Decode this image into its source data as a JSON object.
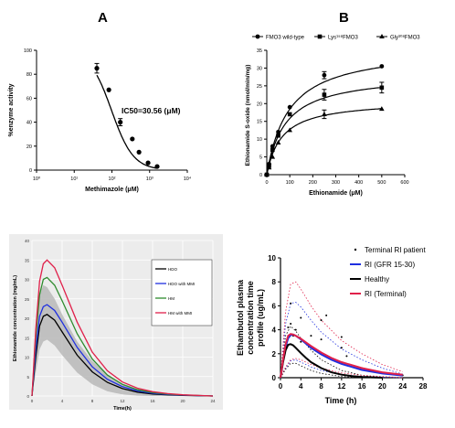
{
  "panels": {
    "A": {
      "letter": "A"
    },
    "B": {
      "letter": "B"
    }
  },
  "chart_data": [
    {
      "id": "A",
      "type": "scatter",
      "xlabel": "Methimazole (μM)",
      "ylabel": "%enzyme activity",
      "xscale": "log",
      "xlim": [
        0.1,
        10000
      ],
      "ylim": [
        0,
        100
      ],
      "xticklabels": [
        "10⁰",
        "10¹",
        "10²",
        "10³",
        "10⁴"
      ],
      "yticks": [
        0,
        20,
        40,
        60,
        80,
        100
      ],
      "annotation": "IC50=30.56 (μM)",
      "points": {
        "x": [
          10,
          25,
          60,
          150,
          250,
          500,
          1000
        ],
        "y": [
          85,
          67,
          40,
          26,
          15,
          6,
          3
        ],
        "err": [
          4,
          0,
          3,
          0,
          0,
          0,
          0
        ]
      },
      "fit": {
        "model": "sigmoid",
        "top": 100,
        "bottom": 0,
        "ic50": 30.56,
        "hill": 1.2
      }
    },
    {
      "id": "B",
      "type": "scatter",
      "xlabel": "Ethionamide (μM)",
      "ylabel": "Ethionamide S-oxide (nmol/min/mg)",
      "xlim": [
        0,
        600
      ],
      "ylim": [
        0,
        35
      ],
      "xticks": [
        0,
        100,
        200,
        300,
        400,
        500,
        600
      ],
      "yticks": [
        0,
        5,
        10,
        15,
        20,
        25,
        30,
        35
      ],
      "legend_position": "top",
      "series": [
        {
          "name": "FMO3 wild-type",
          "marker": "circle",
          "x": [
            0,
            10,
            25,
            50,
            100,
            250,
            500
          ],
          "y": [
            0,
            3,
            8,
            12,
            19,
            28,
            30.5
          ],
          "err": [
            0,
            0,
            0,
            0,
            0,
            1,
            0
          ],
          "vmax": 36,
          "km": 95
        },
        {
          "name": "Lys¹⁵⁸FMO3",
          "marker": "square",
          "x": [
            0,
            10,
            25,
            50,
            100,
            250,
            500
          ],
          "y": [
            0,
            2.5,
            7,
            11,
            17,
            22.5,
            24.5
          ],
          "err": [
            0,
            0,
            0,
            0,
            0,
            1.5,
            1.5
          ],
          "vmax": 28.5,
          "km": 80
        },
        {
          "name": "Gly³⁰⁸FMO3",
          "marker": "triangle",
          "x": [
            0,
            10,
            25,
            50,
            100,
            250,
            500
          ],
          "y": [
            0,
            2,
            5,
            9,
            12.5,
            17,
            18.5
          ],
          "err": [
            0,
            0,
            0,
            0,
            0,
            1.2,
            0
          ],
          "vmax": 21,
          "km": 65
        }
      ]
    },
    {
      "id": "C",
      "type": "line",
      "xlabel": "Time(h)",
      "ylabel": "Ethionamide concentration (mg/mL)",
      "xlim": [
        0,
        24
      ],
      "ylim": [
        0,
        40
      ],
      "xticks": [
        0,
        4,
        8,
        12,
        16,
        20,
        24
      ],
      "yticks": [
        0,
        5,
        10,
        15,
        20,
        25,
        30,
        35,
        40
      ],
      "legend_position": "right",
      "series": [
        {
          "name": "HDO",
          "color": "#000000",
          "x": [
            0,
            0.5,
            1,
            1.5,
            2,
            3,
            4,
            6,
            8,
            10,
            12,
            14,
            16,
            18,
            20,
            24
          ],
          "y": [
            0,
            10,
            18,
            20.5,
            21,
            19.5,
            16.5,
            10.5,
            6.2,
            3.5,
            1.9,
            1,
            0.5,
            0.3,
            0.15,
            0
          ]
        },
        {
          "name": "HDO with MMI",
          "color": "#1f2fe0",
          "x": [
            0,
            0.5,
            1,
            1.5,
            2,
            3,
            4,
            6,
            8,
            10,
            12,
            14,
            16,
            18,
            20,
            24
          ],
          "y": [
            0,
            12,
            20.5,
            23,
            23.5,
            22,
            19,
            12.5,
            7.5,
            4.3,
            2.4,
            1.3,
            0.7,
            0.4,
            0.2,
            0
          ]
        },
        {
          "name": "HM",
          "color": "#2e8b2e",
          "x": [
            0,
            0.5,
            1,
            1.5,
            2,
            3,
            4,
            6,
            8,
            10,
            12,
            14,
            16,
            18,
            20,
            24
          ],
          "y": [
            0,
            15,
            26,
            30,
            30.5,
            28.5,
            24.5,
            16,
            9.5,
            5.4,
            3,
            1.6,
            0.9,
            0.5,
            0.25,
            0
          ]
        },
        {
          "name": "HM with MMI",
          "color": "#e0204a",
          "x": [
            0,
            0.5,
            1,
            1.5,
            2,
            3,
            4,
            6,
            8,
            10,
            12,
            14,
            16,
            18,
            20,
            24
          ],
          "y": [
            0,
            17,
            29.5,
            34,
            35,
            33,
            28.5,
            19,
            11.3,
            6.5,
            3.6,
            2,
            1.1,
            0.6,
            0.3,
            0
          ]
        }
      ],
      "band": {
        "name": "HDO range",
        "color": "#b9b9b9",
        "x": [
          0,
          0.5,
          1,
          1.5,
          2,
          3,
          4,
          6,
          8,
          10,
          12,
          14,
          16,
          18,
          20,
          24
        ],
        "lo": [
          0,
          6,
          12,
          14,
          14.5,
          13,
          10.5,
          6,
          3,
          1.2,
          0.4,
          0.1,
          0,
          0,
          0,
          0
        ],
        "hi": [
          0,
          16,
          26,
          28.5,
          28,
          25,
          21,
          14,
          9,
          5.5,
          3.2,
          1.8,
          1,
          0.5,
          0.2,
          0
        ]
      }
    },
    {
      "id": "D",
      "type": "line",
      "xlabel": "Time (h)",
      "ylabel": "Ethambutol plasma concentration time profile (ug/mL)",
      "ylabel_lines": [
        "Ethambutol plasma",
        "concentration time",
        "profile (ug/mL)"
      ],
      "xlim": [
        0,
        28
      ],
      "ylim": [
        0,
        10
      ],
      "xticks": [
        0,
        4,
        8,
        12,
        16,
        20,
        24,
        28
      ],
      "yticks": [
        0,
        2,
        4,
        6,
        8,
        10
      ],
      "legend_position": "top-right",
      "series": [
        {
          "name": "Terminal RI patient",
          "color": "#000000",
          "style": "points",
          "x": [
            0.5,
            1,
            1.5,
            2,
            2,
            2.5,
            3,
            4,
            4,
            6,
            6,
            8,
            8,
            8,
            9,
            12,
            12,
            12,
            13,
            16,
            24
          ],
          "y": [
            1.5,
            2.5,
            4.2,
            4.5,
            6.2,
            3.5,
            4,
            3,
            5,
            2.5,
            3.5,
            2,
            3.2,
            4.8,
            5.2,
            1.2,
            2.5,
            3.4,
            1.8,
            0.8,
            0.2
          ]
        },
        {
          "name": "RI (GFR 15-30)",
          "color": "#1f2fe0",
          "x": [
            0,
            0.5,
            1,
            1.5,
            2,
            2.5,
            3,
            4,
            5,
            6,
            8,
            10,
            12,
            16,
            20,
            24
          ],
          "y": [
            0,
            1.4,
            2.6,
            3.3,
            3.55,
            3.6,
            3.5,
            3.2,
            2.85,
            2.5,
            1.95,
            1.5,
            1.15,
            0.65,
            0.35,
            0.18
          ]
        },
        {
          "name": "Healthy",
          "color": "#000000",
          "x": [
            0,
            0.5,
            1,
            1.5,
            2,
            2.5,
            3,
            4,
            5,
            6,
            8,
            10,
            12,
            14,
            16,
            20
          ],
          "y": [
            0,
            1.3,
            2.3,
            2.75,
            2.8,
            2.7,
            2.5,
            2.05,
            1.65,
            1.3,
            0.8,
            0.45,
            0.25,
            0.14,
            0.07,
            0
          ]
        },
        {
          "name": "RI (Terminal)",
          "color": "#e0204a",
          "x": [
            0,
            0.5,
            1,
            1.5,
            2,
            2.5,
            3,
            4,
            5,
            6,
            8,
            10,
            12,
            16,
            20,
            24
          ],
          "y": [
            0,
            1.5,
            2.8,
            3.5,
            3.65,
            3.6,
            3.5,
            3.25,
            2.95,
            2.65,
            2.1,
            1.65,
            1.3,
            0.8,
            0.45,
            0.25
          ]
        }
      ],
      "bands": [
        {
          "color": "#1f2fe0",
          "x": [
            0,
            1,
            2,
            3,
            4,
            6,
            8,
            12,
            16,
            20,
            24
          ],
          "lo": [
            0,
            0.8,
            1.4,
            1.5,
            1.3,
            0.9,
            0.6,
            0.25,
            0.1,
            0.05,
            0
          ],
          "hi": [
            0,
            4.5,
            6.2,
            6.3,
            5.9,
            4.8,
            3.8,
            2.4,
            1.5,
            0.8,
            0.3
          ]
        },
        {
          "color": "#000000",
          "x": [
            0,
            1,
            2,
            3,
            4,
            6,
            8,
            12,
            16,
            20
          ],
          "lo": [
            0,
            0.7,
            1.2,
            1.2,
            1,
            0.6,
            0.35,
            0.1,
            0,
            0
          ],
          "hi": [
            0,
            3.5,
            4.3,
            3.9,
            3.3,
            2.3,
            1.5,
            0.6,
            0.2,
            0
          ]
        },
        {
          "color": "#e0204a",
          "x": [
            0,
            1,
            2,
            3,
            4,
            6,
            8,
            12,
            16,
            20,
            24
          ],
          "lo": [
            0,
            0.9,
            1.5,
            1.6,
            1.5,
            1.1,
            0.8,
            0.4,
            0.2,
            0.1,
            0
          ],
          "hi": [
            0,
            5.5,
            7.8,
            8,
            7.4,
            6,
            4.8,
            3.1,
            2,
            1.1,
            0.5
          ]
        }
      ]
    }
  ]
}
